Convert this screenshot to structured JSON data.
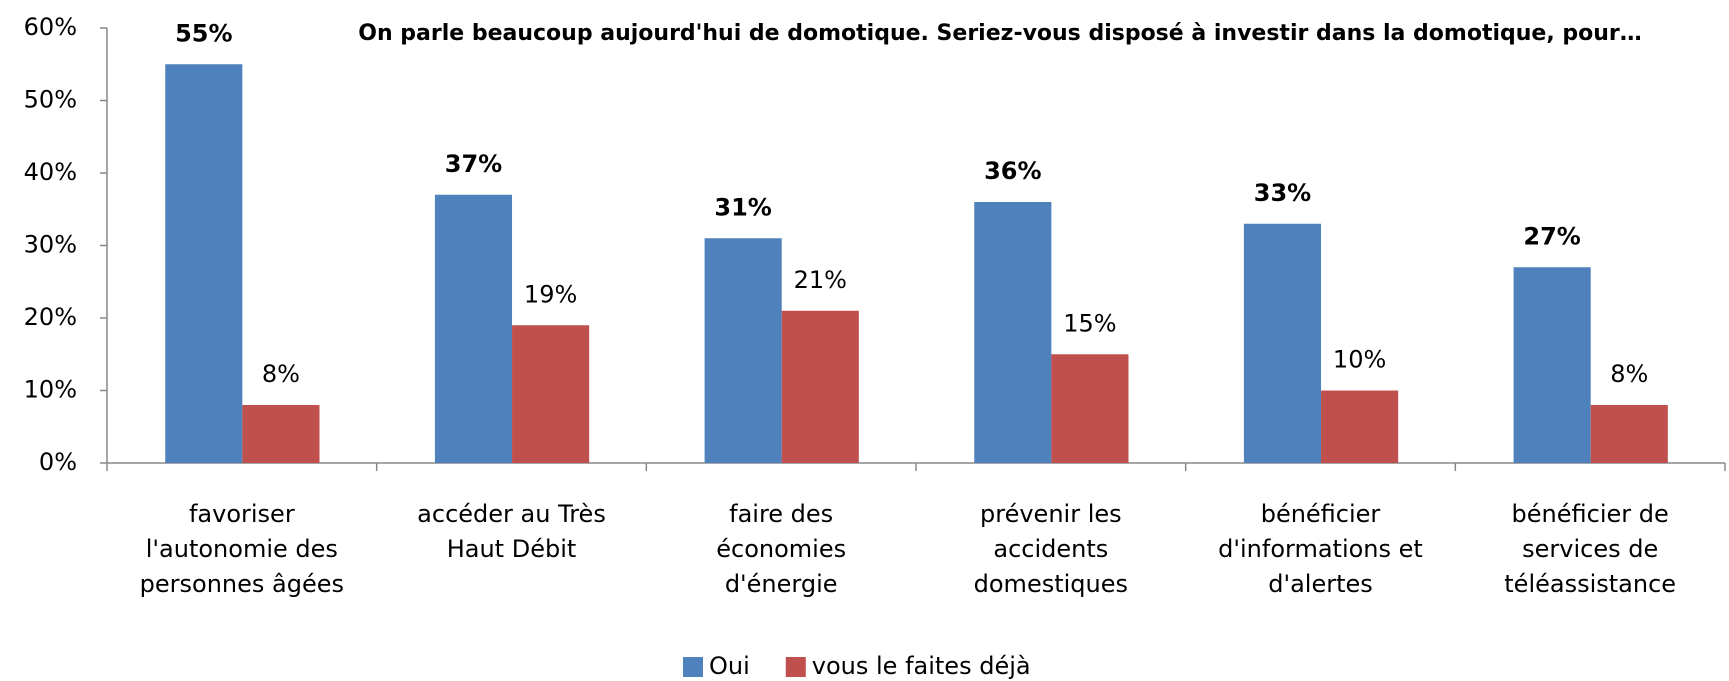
{
  "chart_data": {
    "type": "bar",
    "title": "On parle beaucoup aujourd'hui de domotique. Seriez-vous disposé à investir dans la domotique, pour…",
    "categories": [
      [
        "favoriser",
        "l'autonomie des",
        "personnes âgées"
      ],
      [
        "accéder au Très",
        "Haut Débit"
      ],
      [
        "faire des",
        "économies",
        "d'énergie"
      ],
      [
        "prévenir les",
        "accidents",
        "domestiques"
      ],
      [
        "bénéficier",
        "d'informations et",
        "d'alertes"
      ],
      [
        "bénéficier de",
        "services de",
        "téléassistance"
      ]
    ],
    "series": [
      {
        "name": "Oui",
        "color": "#4f81bd",
        "label_color": "#1f6fbf",
        "values": [
          55,
          37,
          31,
          36,
          33,
          27
        ],
        "value_labels": [
          "55%",
          "37%",
          "31%",
          "36%",
          "33%",
          "27%"
        ]
      },
      {
        "name": "vous le faites déjà",
        "color": "#c0504d",
        "label_color": "#c00000",
        "values": [
          8,
          19,
          21,
          15,
          10,
          8
        ],
        "value_labels": [
          "8%",
          "19%",
          "21%",
          "15%",
          "10%",
          "8%"
        ]
      }
    ],
    "ylim": [
      0,
      60
    ],
    "yticks": [
      {
        "value": 0,
        "label": "0%"
      },
      {
        "value": 10,
        "label": "10%"
      },
      {
        "value": 20,
        "label": "20%"
      },
      {
        "value": 30,
        "label": "30%"
      },
      {
        "value": 40,
        "label": "40%"
      },
      {
        "value": 50,
        "label": "50%"
      },
      {
        "value": 60,
        "label": "60%"
      }
    ],
    "legend": "bottom"
  }
}
